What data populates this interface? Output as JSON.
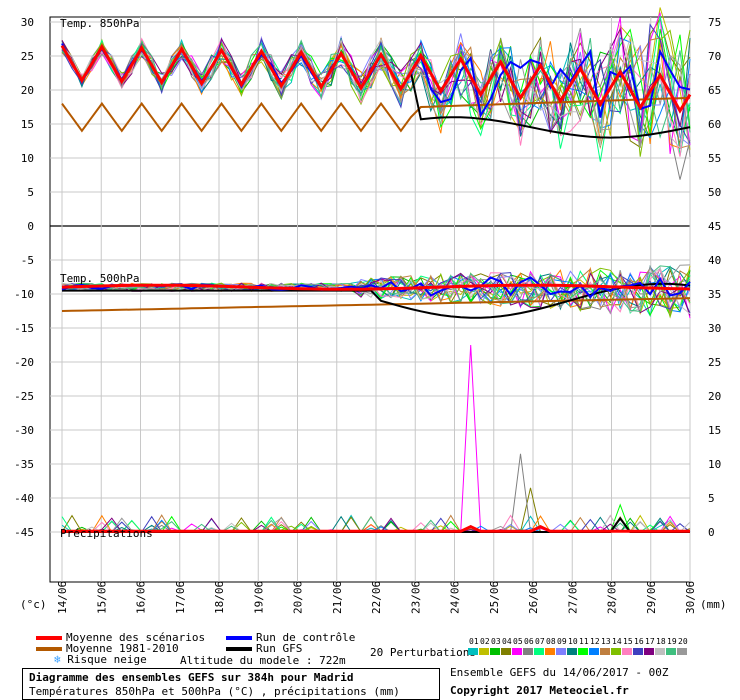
{
  "chart_data": {
    "type": "line",
    "panels": {
      "t850": {
        "label": "Temp. 850hPa"
      },
      "t500": {
        "label": "Temp. 500hPa"
      },
      "precip": {
        "label": "Précipitations"
      }
    },
    "left_axis": {
      "ticks": [
        30,
        25,
        20,
        15,
        10,
        5,
        0,
        -5,
        -10,
        -15,
        -20,
        -25,
        -30,
        -35,
        -40,
        -45
      ],
      "unit": "(°c)"
    },
    "right_axis": {
      "ticks": [
        75,
        70,
        65,
        60,
        55,
        50,
        45,
        40,
        35,
        30,
        25,
        20,
        15,
        10,
        5,
        0
      ],
      "unit": "(mm)"
    },
    "x_labels": [
      "14/06",
      "15/06",
      "16/06",
      "17/06",
      "18/06",
      "19/06",
      "20/06",
      "21/06",
      "22/06",
      "23/06",
      "24/06",
      "25/06",
      "26/06",
      "27/06",
      "28/06",
      "29/06",
      "30/06"
    ],
    "series_names": {
      "mean": "Moyenne des scénarios",
      "control": "Run de contrôle",
      "climo": "Moyenne 1981-2010",
      "gfs": "Run GFS"
    },
    "colors": {
      "mean": "#ff0000",
      "control": "#0000ff",
      "climo": "#b35900",
      "gfs": "#000000",
      "perturbations": [
        "#00bfbf",
        "#bfbf00",
        "#00bf00",
        "#7f7f00",
        "#ff00ff",
        "#808080",
        "#00ff7f",
        "#ff7f00",
        "#7f7fff",
        "#007f7f",
        "#00ff00",
        "#0080ff",
        "#bf7f3f",
        "#7fbf00",
        "#ff7fbf",
        "#3f3fbf",
        "#7f007f",
        "#bfbfbf",
        "#3fbf7f",
        "#999999"
      ]
    },
    "perturbation_labels": [
      "01",
      "02",
      "03",
      "04",
      "05",
      "06",
      "07",
      "08",
      "09",
      "10",
      "11",
      "12",
      "13",
      "14",
      "15",
      "16",
      "17",
      "18",
      "19",
      "20"
    ]
  },
  "legend": {
    "snow_risk": "Risque neige",
    "altitude": "Altitude du modele : 722m",
    "perturbations": "20 Perturbations"
  },
  "footer": {
    "title": "Diagramme des ensembles GEFS sur 384h pour Madrid",
    "subtitle": "Températures 850hPa et 500hPa (°C) , précipitations (mm)",
    "run": "Ensemble GEFS du 14/06/2017 - 00Z",
    "copyright": "Copyright 2017 Meteociel.fr"
  }
}
